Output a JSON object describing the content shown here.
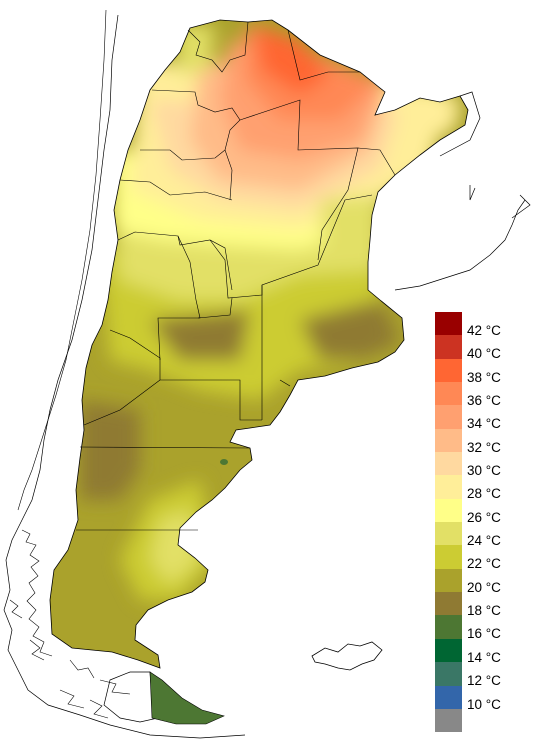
{
  "legend": {
    "items": [
      {
        "label": "42 °C",
        "color": "#990000"
      },
      {
        "label": "40 °C",
        "color": "#cc3322"
      },
      {
        "label": "38 °C",
        "color": "#ff6633"
      },
      {
        "label": "36 °C",
        "color": "#ff8855"
      },
      {
        "label": "34 °C",
        "color": "#ffa070"
      },
      {
        "label": "32 °C",
        "color": "#ffbb88"
      },
      {
        "label": "30 °C",
        "color": "#ffd9a0"
      },
      {
        "label": "28 °C",
        "color": "#ffee99"
      },
      {
        "label": "26 °C",
        "color": "#ffff88"
      },
      {
        "label": "24 °C",
        "color": "#e2e066"
      },
      {
        "label": "22 °C",
        "color": "#cccc33"
      },
      {
        "label": "20 °C",
        "color": "#aaa22c"
      },
      {
        "label": "18 °C",
        "color": "#8f7a33"
      },
      {
        "label": "16 °C",
        "color": "#4d7733"
      },
      {
        "label": "14 °C",
        "color": "#006633"
      },
      {
        "label": "12 °C",
        "color": "#3a7766"
      },
      {
        "label": "10 °C",
        "color": "#3366aa"
      },
      {
        "label": "",
        "color": "#888888"
      }
    ]
  }
}
